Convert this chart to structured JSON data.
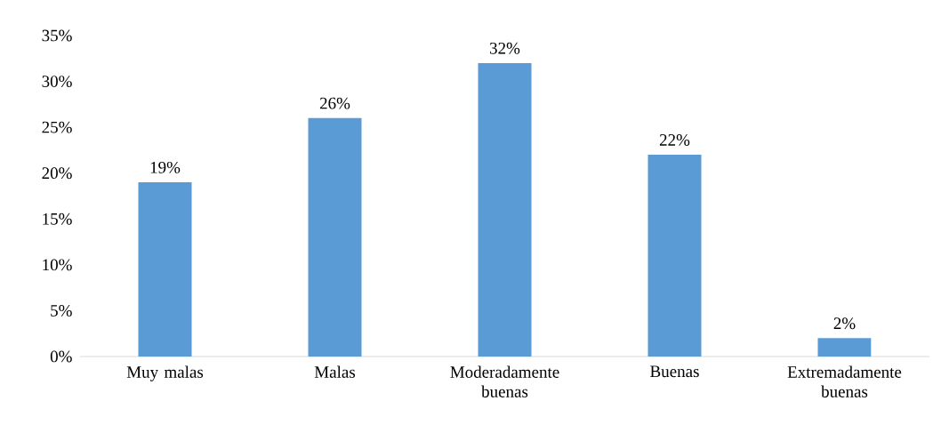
{
  "chart_data": {
    "type": "bar",
    "categories": [
      "Muy malas",
      "Malas",
      "Moderadamente buenas",
      "Buenas",
      "Extremadamente buenas"
    ],
    "values": [
      19,
      26,
      32,
      22,
      2
    ],
    "value_labels": [
      "19%",
      "26%",
      "32%",
      "22%",
      "2%"
    ],
    "color": "#5b9bd5",
    "ylim": [
      0,
      35
    ],
    "yticks": [
      {
        "value": 0,
        "label": "0%"
      },
      {
        "value": 5,
        "label": "5%"
      },
      {
        "value": 10,
        "label": "10%"
      },
      {
        "value": 15,
        "label": "15%"
      },
      {
        "value": 20,
        "label": "20%"
      },
      {
        "value": 25,
        "label": "25%"
      },
      {
        "value": 30,
        "label": "30%"
      },
      {
        "value": 35,
        "label": "35%"
      }
    ]
  }
}
